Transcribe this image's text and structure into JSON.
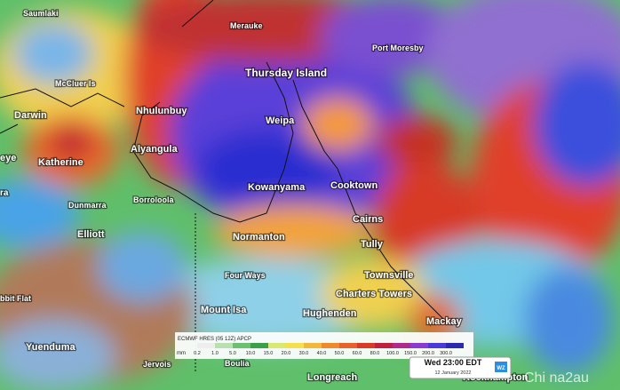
{
  "places": [
    "Saumlaki",
    "Merauke",
    "Port Moresby",
    "McCluer Is",
    "Thursday Island",
    "Darwin",
    "Nhulunbuy",
    "Weipa",
    "eye",
    "Katherine",
    "Alyangula",
    "Kowanyama",
    "Cooktown",
    "ra",
    "Dunmarra",
    "Borroloola",
    "Cairns",
    "Elliott",
    "Normanton",
    "Tully",
    "Townsville",
    "Four Ways",
    "Charters Towers",
    "bbit Flat",
    "Mount Isa",
    "Hughenden",
    "Mackay",
    "Yuenduma",
    "Jervois",
    "Boulia",
    "Longreach",
    "Rockhampton"
  ],
  "legend": {
    "title": "ECMWF HRES (05 12Z) APCP",
    "unit": "mm",
    "ticks": [
      "0.2",
      "1.0",
      "5.0",
      "10.0",
      "15.0",
      "20.0",
      "30.0",
      "40.0",
      "50.0",
      "60.0",
      "80.0",
      "100.0",
      "150.0",
      "200.0",
      "300.0"
    ]
  },
  "timestamp": {
    "time": "Wed 23:00 EDT",
    "date": "12 January 2022",
    "logo": "WZ"
  },
  "watermark": "Chi na2au"
}
